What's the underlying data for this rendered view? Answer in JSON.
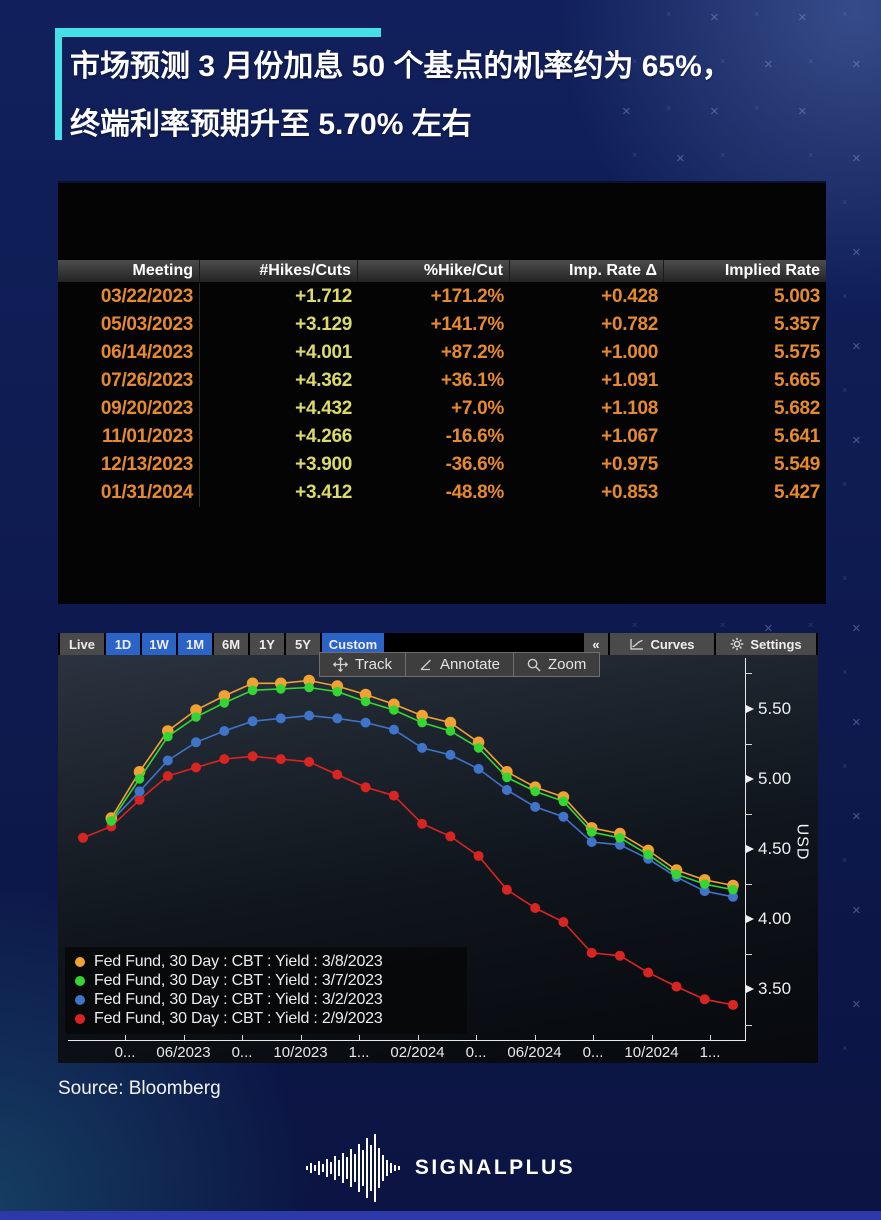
{
  "header": {
    "line1": "市场预测 3 月份加息 50 个基点的机率约为 65%，",
    "line2": "终端利率预期升至 5.70% 左右",
    "accent_color": "#45dfe8"
  },
  "table": {
    "headers": [
      "Meeting",
      "#Hikes/Cuts",
      "%Hike/Cut",
      "Imp. Rate Δ",
      "Implied Rate"
    ],
    "rows": [
      [
        "03/22/2023",
        "+1.712",
        "+171.2%",
        "+0.428",
        "5.003"
      ],
      [
        "05/03/2023",
        "+3.129",
        "+141.7%",
        "+0.782",
        "5.357"
      ],
      [
        "06/14/2023",
        "+4.001",
        "+87.2%",
        "+1.000",
        "5.575"
      ],
      [
        "07/26/2023",
        "+4.362",
        "+36.1%",
        "+1.091",
        "5.665"
      ],
      [
        "09/20/2023",
        "+4.432",
        "+7.0%",
        "+1.108",
        "5.682"
      ],
      [
        "11/01/2023",
        "+4.266",
        "-16.6%",
        "+1.067",
        "5.641"
      ],
      [
        "12/13/2023",
        "+3.900",
        "-36.6%",
        "+0.975",
        "5.549"
      ],
      [
        "01/31/2024",
        "+3.412",
        "-48.8%",
        "+0.853",
        "5.427"
      ]
    ],
    "colors": {
      "date": "#e78a2e",
      "hikes": "#dcda6a",
      "value": "#e78a2e"
    }
  },
  "chart": {
    "range_buttons": [
      {
        "label": "Live",
        "active": false
      },
      {
        "label": "1D",
        "active": true
      },
      {
        "label": "1W",
        "active": true
      },
      {
        "label": "1M",
        "active": true
      },
      {
        "label": "6M",
        "active": false
      },
      {
        "label": "1Y",
        "active": false
      },
      {
        "label": "5Y",
        "active": false
      },
      {
        "label": "Custom",
        "active": true
      }
    ],
    "collapse_label": "«",
    "curves_label": "Curves",
    "settings_label": "Settings",
    "tools": [
      "Track",
      "Annotate",
      "Zoom"
    ],
    "y_axis_label": "USD",
    "y_ticks": [
      "5.50",
      "5.00",
      "4.50",
      "4.00",
      "3.50"
    ],
    "x_ticks": [
      "0...",
      "06/2023",
      "0...",
      "10/2023",
      "1...",
      "02/2024",
      "0...",
      "06/2024",
      "0...",
      "10/2024",
      "1..."
    ]
  },
  "chart_data": {
    "type": "line",
    "title": "Fed Fund 30 Day futures implied yield curves",
    "ylabel": "USD",
    "ylim": [
      3.14,
      5.86
    ],
    "x_ticks": [
      "0...",
      "06/2023",
      "0...",
      "10/2023",
      "1...",
      "02/2024",
      "0...",
      "06/2024",
      "0...",
      "10/2024",
      "1..."
    ],
    "legend_position": "bottom-left",
    "series": [
      {
        "name": "Fed Fund, 30 Day : CBT : Yield : 3/8/2023",
        "color": "#f2a133",
        "values": [
          null,
          4.72,
          5.05,
          5.34,
          5.49,
          5.59,
          5.68,
          5.68,
          5.7,
          5.66,
          5.6,
          5.53,
          5.45,
          5.4,
          5.26,
          5.05,
          4.94,
          4.87,
          4.65,
          4.61,
          4.49,
          4.35,
          4.28,
          4.24
        ]
      },
      {
        "name": "Fed Fund, 30 Day : CBT : Yield : 3/7/2023",
        "color": "#33d633",
        "values": [
          null,
          4.7,
          5.0,
          5.3,
          5.44,
          5.54,
          5.63,
          5.64,
          5.65,
          5.62,
          5.55,
          5.49,
          5.4,
          5.34,
          5.22,
          5.01,
          4.91,
          4.84,
          4.62,
          4.58,
          4.46,
          4.32,
          4.25,
          4.21
        ]
      },
      {
        "name": "Fed Fund, 30 Day : CBT : Yield : 3/2/2023",
        "color": "#3f74c9",
        "values": [
          null,
          4.7,
          4.91,
          5.13,
          5.26,
          5.34,
          5.41,
          5.43,
          5.45,
          5.43,
          5.4,
          5.35,
          5.22,
          5.17,
          5.07,
          4.92,
          4.8,
          4.73,
          4.55,
          4.53,
          4.43,
          4.3,
          4.2,
          4.16
        ]
      },
      {
        "name": "Fed Fund, 30 Day : CBT : Yield : 2/9/2023",
        "color": "#d92521",
        "values": [
          4.58,
          4.66,
          4.85,
          5.02,
          5.08,
          5.14,
          5.16,
          5.14,
          5.12,
          5.03,
          4.94,
          4.88,
          4.68,
          4.59,
          4.45,
          4.21,
          4.08,
          3.98,
          3.76,
          3.74,
          3.62,
          3.52,
          3.43,
          3.39
        ]
      }
    ]
  },
  "source": "Source: Bloomberg",
  "logo_text": "SIGNALPLUS"
}
